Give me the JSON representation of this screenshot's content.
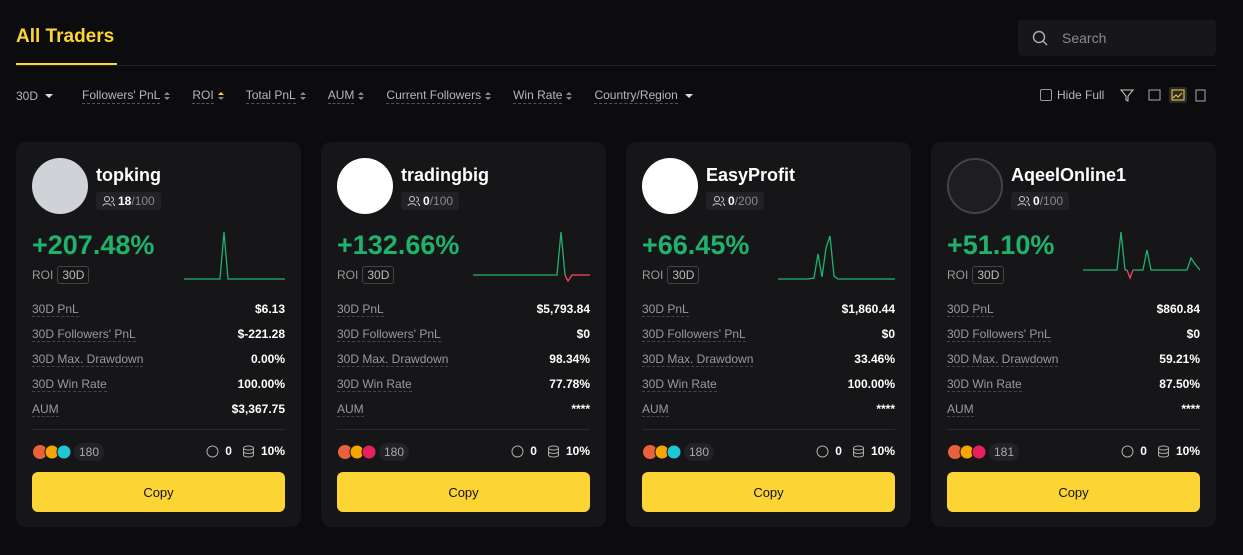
{
  "header": {
    "title": "All Traders",
    "search_placeholder": "Search"
  },
  "filters": [
    "30D",
    "Followers' PnL",
    "ROI",
    "Total PnL",
    "AUM",
    "Current Followers",
    "Win Rate",
    "Country/Region"
  ],
  "hide_full": "Hide Full",
  "traders": [
    {
      "name": "topking",
      "followers": "18",
      "capacity": "/100",
      "roi": "+207.48%",
      "roi_label": "ROI",
      "period": "30D",
      "stats": [
        {
          "label": "30D PnL",
          "value": "$6.13"
        },
        {
          "label": "30D Followers' PnL",
          "value": "$-221.28"
        },
        {
          "label": "30D Max. Drawdown",
          "value": "0.00%"
        },
        {
          "label": "30D Win Rate",
          "value": "100.00%"
        },
        {
          "label": "AUM",
          "value": "$3,367.75"
        }
      ],
      "copiers": "180",
      "count": "0",
      "share": "10%",
      "button": "Copy"
    },
    {
      "name": "tradingbig",
      "followers": "0",
      "capacity": "/100",
      "roi": "+132.66%",
      "roi_label": "ROI",
      "period": "30D",
      "stats": [
        {
          "label": "30D PnL",
          "value": "$5,793.84"
        },
        {
          "label": "30D Followers' PnL",
          "value": "$0"
        },
        {
          "label": "30D Max. Drawdown",
          "value": "98.34%"
        },
        {
          "label": "30D Win Rate",
          "value": "77.78%"
        },
        {
          "label": "AUM",
          "value": "****"
        }
      ],
      "copiers": "180",
      "count": "0",
      "share": "10%",
      "button": "Copy"
    },
    {
      "name": "EasyProfit",
      "followers": "0",
      "capacity": "/200",
      "roi": "+66.45%",
      "roi_label": "ROI",
      "period": "30D",
      "stats": [
        {
          "label": "30D PnL",
          "value": "$1,860.44"
        },
        {
          "label": "30D Followers' PnL",
          "value": "$0"
        },
        {
          "label": "30D Max. Drawdown",
          "value": "33.46%"
        },
        {
          "label": "30D Win Rate",
          "value": "100.00%"
        },
        {
          "label": "AUM",
          "value": "****"
        }
      ],
      "copiers": "180",
      "count": "0",
      "share": "10%",
      "button": "Copy"
    },
    {
      "name": "AqeelOnline1",
      "followers": "0",
      "capacity": "/100",
      "roi": "+51.10%",
      "roi_label": "ROI",
      "period": "30D",
      "stats": [
        {
          "label": "30D PnL",
          "value": "$860.84"
        },
        {
          "label": "30D Followers' PnL",
          "value": "$0"
        },
        {
          "label": "30D Max. Drawdown",
          "value": "59.21%"
        },
        {
          "label": "30D Win Rate",
          "value": "87.50%"
        },
        {
          "label": "AUM",
          "value": "****"
        }
      ],
      "copiers": "181",
      "count": "0",
      "share": "10%",
      "button": "Copy"
    }
  ]
}
